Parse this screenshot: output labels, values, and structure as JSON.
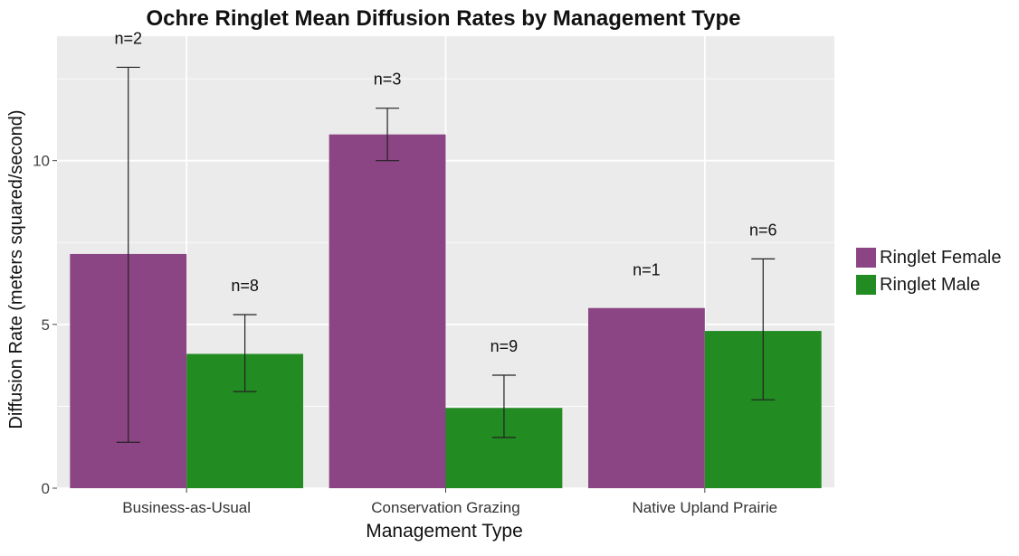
{
  "chart_data": {
    "type": "bar",
    "title": "Ochre Ringlet Mean Diffusion Rates by Management Type",
    "xlabel": "Management Type",
    "ylabel": "Diffusion Rate (meters squared/second)",
    "categories": [
      "Business-as-Usual",
      "Conservation Grazing",
      "Native Upland Prairie"
    ],
    "ylim": [
      0,
      13.8
    ],
    "yticks": [
      0,
      5,
      10
    ],
    "grid": true,
    "legend_position": "right",
    "series": [
      {
        "name": "Ringlet Female",
        "color": "#8b4584",
        "values": [
          7.15,
          10.8,
          5.5
        ],
        "error_low": [
          1.4,
          10.0,
          null
        ],
        "error_high": [
          12.85,
          11.6,
          null
        ],
        "n_labels": [
          "n=2",
          "n=3",
          "n=1"
        ]
      },
      {
        "name": "Ringlet Male",
        "color": "#228b22",
        "values": [
          4.1,
          2.45,
          4.8
        ],
        "error_low": [
          2.95,
          1.55,
          2.7
        ],
        "error_high": [
          5.3,
          3.45,
          7.0
        ],
        "n_labels": [
          "n=8",
          "n=9",
          "n=6"
        ]
      }
    ],
    "colors": {
      "panel_background": "#ebebeb",
      "grid": "#ffffff"
    }
  }
}
